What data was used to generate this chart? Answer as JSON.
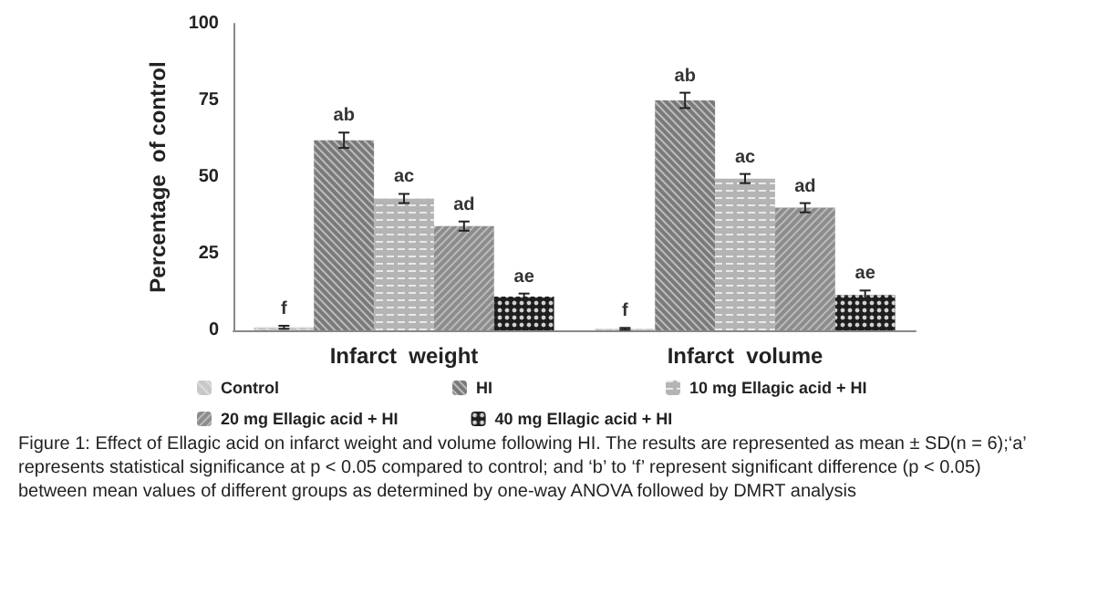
{
  "chart_data": {
    "type": "bar",
    "ylabel": "Percentage  of control",
    "categories": [
      "Infarct  weight",
      "Infarct  volume"
    ],
    "series": [
      {
        "name": "Control",
        "color": "#c8c8c8",
        "values": [
          1,
          0.5
        ],
        "errors": [
          0.5,
          0.3
        ],
        "value_labels": [
          "f",
          "f"
        ]
      },
      {
        "name": "HI",
        "color": "#7a7a7a",
        "values": [
          62,
          75
        ],
        "errors": [
          2.5,
          2.5
        ],
        "value_labels": [
          "ab",
          "ab"
        ]
      },
      {
        "name": "10 mg Ellagic acid + HI",
        "color": "#b4b4b4",
        "values": [
          43,
          49.5
        ],
        "errors": [
          1.5,
          1.5
        ],
        "value_labels": [
          "ac",
          "ac"
        ]
      },
      {
        "name": "20 mg Ellagic acid + HI",
        "color": "#8c8c8c",
        "values": [
          34,
          40
        ],
        "errors": [
          1.5,
          1.5
        ],
        "value_labels": [
          "ad",
          "ad"
        ]
      },
      {
        "name": "40 mg Ellagic acid + HI",
        "color": "#1e1e1e",
        "values": [
          11,
          11.5
        ],
        "errors": [
          1,
          1.5
        ],
        "value_labels": [
          "ae",
          "ae"
        ]
      }
    ],
    "ylim": [
      0,
      100
    ],
    "yticks": [
      0,
      25,
      50,
      75,
      100
    ],
    "grid": false,
    "legend": "bottom",
    "annotations": [
      "Figure 1: Effect of Ellagic acid on infarct weight and volume following HI. The results are represented as mean ± SD(n = 6);‘a’ represents statistical significance at p < 0.05 compared to control; and ‘b’ to ‘f’ represent significant difference (p < 0.05) between mean values of different groups as determined by one-way ANOVA followed by DMRT analysis"
    ]
  }
}
